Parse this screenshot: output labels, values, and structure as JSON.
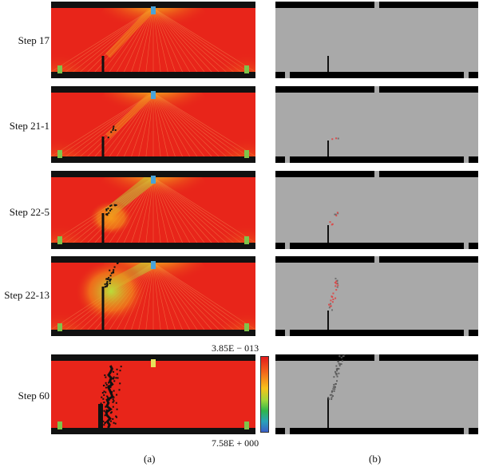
{
  "figure": {
    "steps": [
      {
        "label": "Step 17",
        "stage": 0
      },
      {
        "label": "Step 21-1",
        "stage": 1
      },
      {
        "label": "Step 22-5",
        "stage": 2
      },
      {
        "label": "Step 22-13",
        "stage": 3
      },
      {
        "label": "Step 60",
        "stage": 4
      }
    ],
    "colorbar": {
      "max_label": "3.85E − 013",
      "min_label": "7.58E + 000"
    },
    "captions": {
      "a": "(a)",
      "b": "(b)"
    },
    "colors": {
      "stress_high": "#e8251a",
      "stress_mid": "#f39a1a",
      "stress_low": "#b9dc3a",
      "compression": "#4aa3d8",
      "beam_gray": "#a9a9a9",
      "crack": "#111111",
      "crack_active": "#e04040"
    }
  }
}
